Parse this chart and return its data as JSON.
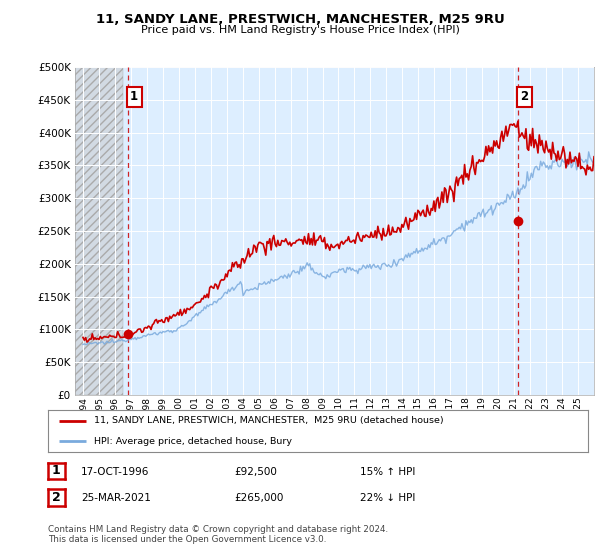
{
  "title_line1": "11, SANDY LANE, PRESTWICH, MANCHESTER, M25 9RU",
  "title_line2": "Price paid vs. HM Land Registry's House Price Index (HPI)",
  "legend_label1": "11, SANDY LANE, PRESTWICH, MANCHESTER,  M25 9RU (detached house)",
  "legend_label2": "HPI: Average price, detached house, Bury",
  "annotation1_label": "1",
  "annotation1_date": "17-OCT-1996",
  "annotation1_price": "£92,500",
  "annotation1_hpi": "15% ↑ HPI",
  "annotation2_label": "2",
  "annotation2_date": "25-MAR-2021",
  "annotation2_price": "£265,000",
  "annotation2_hpi": "22% ↓ HPI",
  "footer": "Contains HM Land Registry data © Crown copyright and database right 2024.\nThis data is licensed under the Open Government Licence v3.0.",
  "price_color": "#cc0000",
  "hpi_color": "#7aaadd",
  "annotation_box_color": "#cc0000",
  "chart_bg": "#ddeeff",
  "hatch_bg": "#e8e8e8",
  "ylim": [
    0,
    500000
  ],
  "yticks": [
    0,
    50000,
    100000,
    150000,
    200000,
    250000,
    300000,
    350000,
    400000,
    450000,
    500000
  ],
  "sale1_x": 1996.8,
  "sale1_y": 92500,
  "sale2_x": 2021.23,
  "sale2_y": 265000,
  "xmin": 1993.5,
  "xmax": 2026.0
}
